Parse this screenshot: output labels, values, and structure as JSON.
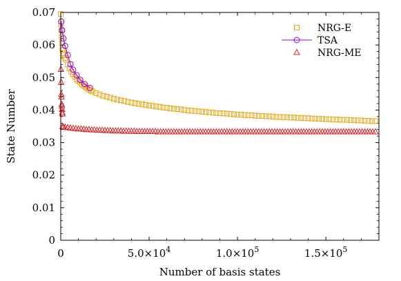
{
  "chart_data": {
    "type": "scatter",
    "title": "",
    "xlabel": "Number of basis states",
    "ylabel": "State Number",
    "xlim": [
      0,
      180000
    ],
    "ylim": [
      0,
      0.07
    ],
    "y_ticks": [
      {
        "value": 0,
        "label": "0"
      },
      {
        "value": 0.01,
        "label": "0.01"
      },
      {
        "value": 0.02,
        "label": "0.02"
      },
      {
        "value": 0.03,
        "label": "0.03"
      },
      {
        "value": 0.04,
        "label": "0.04"
      },
      {
        "value": 0.05,
        "label": "0.05"
      },
      {
        "value": 0.06,
        "label": "0.06"
      },
      {
        "value": 0.07,
        "label": "0.07"
      }
    ],
    "x_ticks": [
      {
        "value": 0,
        "mantissa": "0",
        "exponent": ""
      },
      {
        "value": 50000,
        "mantissa": "5.0×10",
        "exponent": "4"
      },
      {
        "value": 100000,
        "mantissa": "1.0×10",
        "exponent": "5"
      },
      {
        "value": 150000,
        "mantissa": "1.5×10",
        "exponent": "5"
      }
    ],
    "grid": false,
    "legend_position": "top-right",
    "series": [
      {
        "name": "NRG-E",
        "marker": "square",
        "line": false,
        "color": "#e6a817",
        "x": [
          0,
          200,
          400,
          600,
          800,
          1000,
          1500,
          2000,
          2500,
          3000,
          4000,
          5000,
          6000,
          7000,
          8000,
          9000,
          10000,
          11000,
          12000,
          13000,
          14000,
          15000,
          16000,
          17000,
          18000,
          20000,
          22000,
          24000,
          26000,
          28000,
          30000,
          32000,
          34000,
          36000,
          38000,
          40000,
          42000,
          44000,
          46000,
          48000,
          50000,
          52000,
          54000,
          56000,
          58000,
          60000,
          62000,
          64000,
          66000,
          68000,
          70000,
          72000,
          74000,
          76000,
          78000,
          80000,
          82000,
          84000,
          86000,
          88000,
          90000,
          92000,
          94000,
          96000,
          98000,
          100000,
          102000,
          104000,
          106000,
          108000,
          110000,
          112000,
          114000,
          116000,
          118000,
          120000,
          122000,
          124000,
          126000,
          128000,
          130000,
          132000,
          134000,
          136000,
          138000,
          140000,
          142000,
          144000,
          146000,
          148000,
          150000,
          152000,
          154000,
          156000,
          158000,
          160000,
          162000,
          164000,
          166000,
          168000,
          170000,
          172000,
          174000,
          176000,
          178000
        ],
        "y": [
          0.0695,
          0.0665,
          0.0645,
          0.0625,
          0.0605,
          0.0585,
          0.0575,
          0.057,
          0.056,
          0.0555,
          0.054,
          0.0528,
          0.0518,
          0.051,
          0.0502,
          0.0495,
          0.049,
          0.0485,
          0.0479,
          0.0475,
          0.0471,
          0.0467,
          0.0463,
          0.046,
          0.0457,
          0.0452,
          0.0448,
          0.0444,
          0.0441,
          0.0438,
          0.0435,
          0.0432,
          0.043,
          0.0428,
          0.0425,
          0.0423,
          0.0421,
          0.0419,
          0.0418,
          0.0416,
          0.0414,
          0.0413,
          0.0411,
          0.041,
          0.0408,
          0.0407,
          0.0405,
          0.0404,
          0.0403,
          0.0402,
          0.04,
          0.0399,
          0.0398,
          0.0397,
          0.0396,
          0.0395,
          0.0394,
          0.0393,
          0.0392,
          0.0391,
          0.039,
          0.039,
          0.0389,
          0.0388,
          0.0387,
          0.0386,
          0.0386,
          0.0385,
          0.0384,
          0.0384,
          0.0383,
          0.0382,
          0.0382,
          0.0381,
          0.0381,
          0.038,
          0.0379,
          0.0379,
          0.0378,
          0.0378,
          0.0377,
          0.0377,
          0.0376,
          0.0376,
          0.0375,
          0.0375,
          0.0374,
          0.0374,
          0.0373,
          0.0373,
          0.0372,
          0.0372,
          0.0371,
          0.0371,
          0.037,
          0.037,
          0.037,
          0.0369,
          0.0369,
          0.0368,
          0.0368,
          0.0367,
          0.0367,
          0.0366,
          0.0366
        ]
      },
      {
        "name": "TSA",
        "marker": "circle",
        "line": true,
        "color": "#9400d3",
        "x": [
          300,
          800,
          1500,
          2500,
          4000,
          5500,
          7000,
          9000,
          11000,
          13500,
          16500
        ],
        "y": [
          0.0672,
          0.0645,
          0.062,
          0.0597,
          0.0569,
          0.0541,
          0.0524,
          0.0507,
          0.0493,
          0.048,
          0.0468
        ]
      },
      {
        "name": "NRG-ME",
        "marker": "triangle",
        "line": false,
        "color": "#d62728",
        "x": [
          150,
          250,
          350,
          450,
          550,
          650,
          750,
          850,
          950,
          1000,
          1500,
          2500,
          4000,
          5500,
          7000,
          8500,
          10000,
          11500,
          13000,
          14500,
          16000,
          17500,
          19000,
          20500,
          22000,
          23500,
          25000,
          26500,
          28000,
          29500,
          31000,
          32500,
          34000,
          35500,
          37000,
          38500,
          40000,
          41500,
          43000,
          44500,
          46000,
          47500,
          49000,
          50500,
          52000,
          53500,
          55000,
          56500,
          58000,
          59500,
          61000,
          62500,
          64000,
          65500,
          67000,
          68500,
          70000,
          71500,
          73000,
          74500,
          76000,
          77500,
          79000,
          80500,
          82000,
          83500,
          85000,
          86500,
          88000,
          89500,
          91000,
          92500,
          94000,
          95500,
          97000,
          98500,
          100000,
          101500,
          103000,
          104500,
          106000,
          107500,
          109000,
          110500,
          112000,
          113500,
          115000,
          116500,
          118000,
          119500,
          121000,
          122500,
          124000,
          125500,
          127000,
          128500,
          130000,
          131500,
          133000,
          134500,
          136000,
          137500,
          139000,
          140500,
          142000,
          143500,
          145000,
          146500,
          148000,
          149500,
          151000,
          152500,
          154000,
          155500,
          157000,
          158500,
          160000,
          161500,
          163000,
          164500,
          166000,
          167500,
          169000,
          170500,
          172000,
          173500,
          175000,
          176500,
          178000
        ],
        "y": [
          0.0525,
          0.0485,
          0.0448,
          0.044,
          0.0418,
          0.0412,
          0.0402,
          0.0392,
          0.0388,
          0.0349,
          0.0348,
          0.0347,
          0.0346,
          0.0345,
          0.0344,
          0.0343,
          0.0342,
          0.0342,
          0.0341,
          0.034,
          0.034,
          0.0339,
          0.0339,
          0.0338,
          0.0338,
          0.0338,
          0.0337,
          0.0337,
          0.0337,
          0.0336,
          0.0336,
          0.0336,
          0.0336,
          0.0335,
          0.0335,
          0.0335,
          0.0335,
          0.0335,
          0.0334,
          0.0334,
          0.0334,
          0.0334,
          0.0334,
          0.0334,
          0.0334,
          0.0334,
          0.0333,
          0.0333,
          0.0333,
          0.0333,
          0.0333,
          0.0333,
          0.0333,
          0.0333,
          0.0333,
          0.0333,
          0.0333,
          0.0333,
          0.0333,
          0.0333,
          0.0333,
          0.0333,
          0.0333,
          0.0333,
          0.0333,
          0.0333,
          0.0333,
          0.0333,
          0.0333,
          0.0333,
          0.0333,
          0.0333,
          0.0333,
          0.0333,
          0.0333,
          0.0333,
          0.0333,
          0.0333,
          0.0333,
          0.0333,
          0.0333,
          0.0333,
          0.0333,
          0.0333,
          0.0333,
          0.0333,
          0.0333,
          0.0333,
          0.0333,
          0.0333,
          0.0333,
          0.0333,
          0.0333,
          0.0333,
          0.0333,
          0.0333,
          0.0333,
          0.0333,
          0.0333,
          0.0333,
          0.0333,
          0.0333,
          0.0333,
          0.0333,
          0.0333,
          0.0333,
          0.0333,
          0.0333,
          0.0333,
          0.0333,
          0.0333,
          0.0333,
          0.0333,
          0.0333,
          0.0333,
          0.0333,
          0.0333,
          0.0333,
          0.0333,
          0.0333,
          0.0333,
          0.0333,
          0.0333,
          0.0333,
          0.0333,
          0.0333,
          0.0333,
          0.0333,
          0.0333
        ]
      }
    ]
  }
}
